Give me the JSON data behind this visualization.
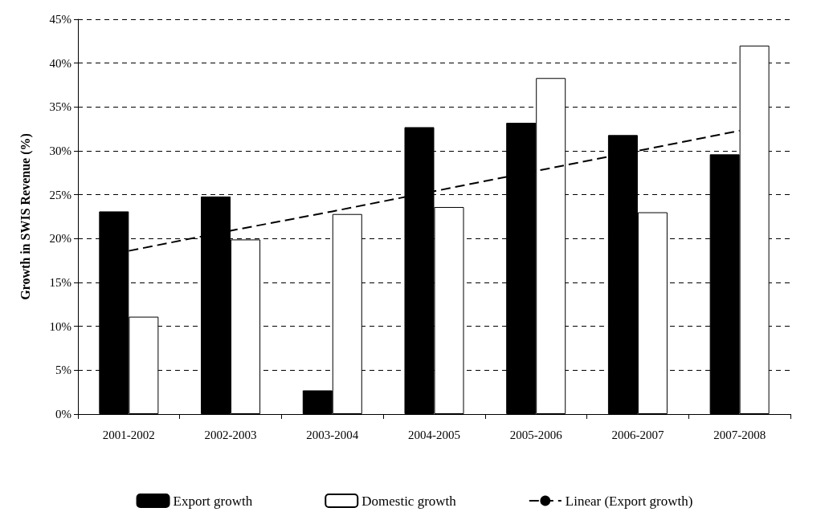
{
  "chart_data": {
    "type": "bar",
    "ylabel": "Growth in SWIS Revenue (%)",
    "categories": [
      "2001-2002",
      "2002-2003",
      "2003-2004",
      "2004-2005",
      "2005-2006",
      "2006-2007",
      "2007-2008"
    ],
    "series": [
      {
        "name": "Export growth",
        "color": "#000000",
        "values": [
          23.1,
          24.8,
          2.7,
          32.7,
          33.2,
          31.8,
          29.6
        ]
      },
      {
        "name": "Domestic growth",
        "color": "#ffffff",
        "values": [
          11.1,
          19.9,
          22.8,
          23.6,
          38.3,
          23.0,
          42.0
        ]
      },
      {
        "name": "Linear (Export growth)",
        "type": "line",
        "color": "#000000",
        "line_style": "dashed",
        "marker": "none",
        "values": [
          18.6,
          20.9,
          23.1,
          25.4,
          27.7,
          30.0,
          32.3
        ]
      }
    ],
    "ylim": [
      0,
      45
    ],
    "yticks": [
      {
        "value": 0,
        "label": "0%"
      },
      {
        "value": 5,
        "label": "5%"
      },
      {
        "value": 10,
        "label": "10%"
      },
      {
        "value": 15,
        "label": "15%"
      },
      {
        "value": 20,
        "label": "20%"
      },
      {
        "value": 25,
        "label": "25%"
      },
      {
        "value": 30,
        "label": "30%"
      },
      {
        "value": 35,
        "label": "35%"
      },
      {
        "value": 40,
        "label": "40%"
      },
      {
        "value": 45,
        "label": "45%"
      }
    ],
    "grid": "y",
    "legend": "bottom"
  }
}
